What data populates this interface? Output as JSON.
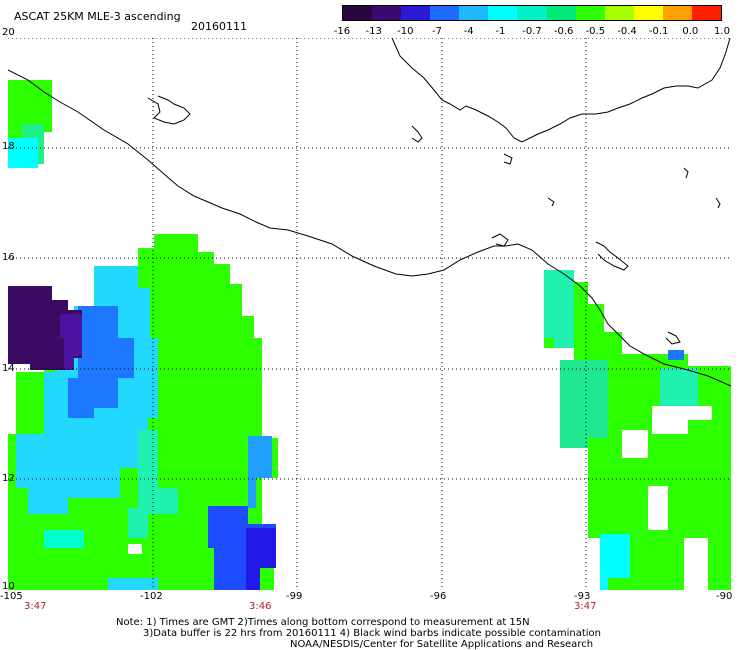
{
  "header": {
    "title": "ASCAT 25KM MLE-3 ascending",
    "date": "20160111"
  },
  "color_scale": {
    "labels": [
      "-16",
      "-13",
      "-10",
      "-7",
      "-4",
      "-1",
      "-0.7",
      "-0.6",
      "-0.5",
      "-0.4",
      "-0.1",
      "0.0",
      "1.0"
    ],
    "colors": [
      "#2a0640",
      "#3d0a6e",
      "#2a1ad8",
      "#1e6cff",
      "#22b8ff",
      "#00ffff",
      "#00f0c8",
      "#00e878",
      "#2cff00",
      "#a8ff00",
      "#ffff00",
      "#ffa000",
      "#ff2000"
    ]
  },
  "axes": {
    "lat_labels": [
      "20",
      "18",
      "16",
      "14",
      "12",
      "10"
    ],
    "lon_labels": [
      "-105",
      "-102",
      "-99",
      "-96",
      "-93",
      "-90"
    ],
    "time_labels": [
      "3:47",
      "3:46",
      "3:47"
    ]
  },
  "notes": {
    "line1": "Note: 1) Times are GMT 2)Times along bottom correspond to measurement at 15N",
    "line2": "3)Data buffer is 22 hrs from 20160111 4) Black wind barbs indicate possible contamination",
    "line3": "NOAA/NESDIS/Center for Satellite Applications and Research"
  }
}
